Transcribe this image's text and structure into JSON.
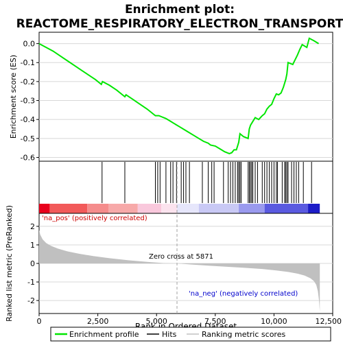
{
  "chart_data": {
    "type": "line",
    "title_line1": "Enrichment plot:",
    "title_line2": "REACTOME_RESPIRATORY_ELECTRON_TRANSPORT",
    "es_panel": {
      "ylabel": "Enrichment score (ES)",
      "ylim": [
        -0.62,
        0.06
      ],
      "yticks": [
        "0.0",
        "-0.1",
        "-0.2",
        "-0.3",
        "-0.4",
        "-0.5",
        "-0.6"
      ],
      "ytick_values": [
        0.0,
        -0.1,
        -0.2,
        -0.3,
        -0.4,
        -0.5,
        -0.6
      ],
      "line_color": "#00e600",
      "series": [
        {
          "x": [
            0,
            300,
            600,
            900,
            1200,
            1500,
            1800,
            2100,
            2400,
            2650,
            2700,
            3000,
            3300,
            3650,
            3700,
            4000,
            4300,
            4600,
            4950,
            5100,
            5200,
            5400,
            5600,
            5800,
            6000,
            6200,
            6400,
            6600,
            6800,
            7000,
            7200,
            7300,
            7500,
            7700,
            7900,
            8000,
            8100,
            8200,
            8300,
            8400,
            8500,
            8550,
            8700,
            8900,
            8950,
            9000,
            9050,
            9150,
            9200,
            9350,
            9500,
            9600,
            9700,
            9800,
            9900,
            10000,
            10100,
            10200,
            10300,
            10400,
            10500,
            10550,
            10600,
            10800,
            10900,
            11000,
            11100,
            11200,
            11400,
            11500,
            11700,
            11900
          ],
          "y": [
            0.0,
            -0.02,
            -0.04,
            -0.065,
            -0.09,
            -0.115,
            -0.14,
            -0.165,
            -0.19,
            -0.215,
            -0.2,
            -0.22,
            -0.245,
            -0.28,
            -0.27,
            -0.295,
            -0.32,
            -0.345,
            -0.38,
            -0.38,
            -0.385,
            -0.395,
            -0.41,
            -0.425,
            -0.44,
            -0.455,
            -0.47,
            -0.485,
            -0.5,
            -0.515,
            -0.525,
            -0.535,
            -0.54,
            -0.555,
            -0.57,
            -0.575,
            -0.58,
            -0.575,
            -0.56,
            -0.56,
            -0.52,
            -0.475,
            -0.49,
            -0.5,
            -0.45,
            -0.43,
            -0.42,
            -0.4,
            -0.39,
            -0.4,
            -0.38,
            -0.37,
            -0.345,
            -0.33,
            -0.32,
            -0.29,
            -0.265,
            -0.27,
            -0.26,
            -0.23,
            -0.19,
            -0.16,
            -0.1,
            -0.11,
            -0.085,
            -0.06,
            -0.03,
            -0.005,
            -0.02,
            0.028,
            0.015,
            0.0
          ]
        }
      ]
    },
    "hits": [
      2680,
      3650,
      4950,
      5050,
      5150,
      5400,
      5600,
      5700,
      5850,
      6050,
      6150,
      6250,
      6400,
      6950,
      7200,
      7350,
      7450,
      7850,
      8050,
      8150,
      8250,
      8350,
      8450,
      8500,
      8550,
      8600,
      8900,
      8950,
      9000,
      9050,
      9100,
      9200,
      9300,
      9500,
      9600,
      9700,
      9800,
      9900,
      10000,
      10100,
      10150,
      10350,
      10450,
      10500,
      10550,
      10600,
      10750,
      10850,
      10950,
      11050,
      11250,
      11600
    ],
    "heatmap_band": {
      "segments": [
        {
          "from": 0,
          "to": 450,
          "color": "#e8001c"
        },
        {
          "from": 450,
          "to": 2050,
          "color": "#f25a5a"
        },
        {
          "from": 2050,
          "to": 2950,
          "color": "#f58c8c"
        },
        {
          "from": 2950,
          "to": 4200,
          "color": "#f7a9a9"
        },
        {
          "from": 4200,
          "to": 5200,
          "color": "#f9c8dc"
        },
        {
          "from": 5200,
          "to": 5871,
          "color": "#fbe3ee"
        },
        {
          "from": 5871,
          "to": 6800,
          "color": "#e6e6fb"
        },
        {
          "from": 6800,
          "to": 8500,
          "color": "#c9c9f5"
        },
        {
          "from": 8500,
          "to": 9600,
          "color": "#9a9aee"
        },
        {
          "from": 9600,
          "to": 11450,
          "color": "#5a5ae0"
        },
        {
          "from": 11450,
          "to": 11950,
          "color": "#1c1cc8"
        }
      ]
    },
    "metric_panel": {
      "ylabel": "Ranked list metric (PreRanked)",
      "xlabel": "Rank in Ordered Dataset",
      "ylim": [
        -2.7,
        2.7
      ],
      "yticks": [
        "2",
        "1",
        "0",
        "-1",
        "-2"
      ],
      "ytick_values": [
        2,
        1,
        0,
        -1,
        -2
      ],
      "xlim": [
        0,
        12500
      ],
      "xticks": [
        "0",
        "2,500",
        "5,000",
        "7,500",
        "10,000",
        "12,500"
      ],
      "xtick_values": [
        0,
        2500,
        5000,
        7500,
        10000,
        12500
      ],
      "fill_color": "#c0c0c0",
      "profile": {
        "x": [
          0,
          50,
          150,
          300,
          500,
          800,
          1200,
          1700,
          2300,
          3000,
          3800,
          4600,
          5300,
          5871,
          6500,
          7200,
          8000,
          8800,
          9500,
          10100,
          10600,
          11000,
          11300,
          11550,
          11700,
          11800,
          11870,
          11920,
          11950
        ],
        "y": [
          1.8,
          1.55,
          1.3,
          1.1,
          0.95,
          0.8,
          0.65,
          0.52,
          0.4,
          0.28,
          0.17,
          0.08,
          0.02,
          0.0,
          -0.06,
          -0.12,
          -0.18,
          -0.24,
          -0.3,
          -0.38,
          -0.46,
          -0.55,
          -0.65,
          -0.8,
          -0.95,
          -1.15,
          -1.5,
          -2.0,
          -2.6
        ]
      },
      "zero_cross_label": "Zero cross at 5871",
      "zero_cross": 5871,
      "pos_label": "'na_pos' (positively correlated)",
      "neg_label": "'na_neg' (negatively correlated)",
      "pos_color": "#cc0000",
      "neg_color": "#0000cc"
    },
    "legend": {
      "items": [
        {
          "label": "Enrichment profile",
          "kind": "line",
          "color": "#00e600"
        },
        {
          "label": "Hits",
          "kind": "line",
          "color": "#000000"
        },
        {
          "label": "Ranking metric scores",
          "kind": "line",
          "color": "#c0c0c0"
        }
      ]
    }
  }
}
